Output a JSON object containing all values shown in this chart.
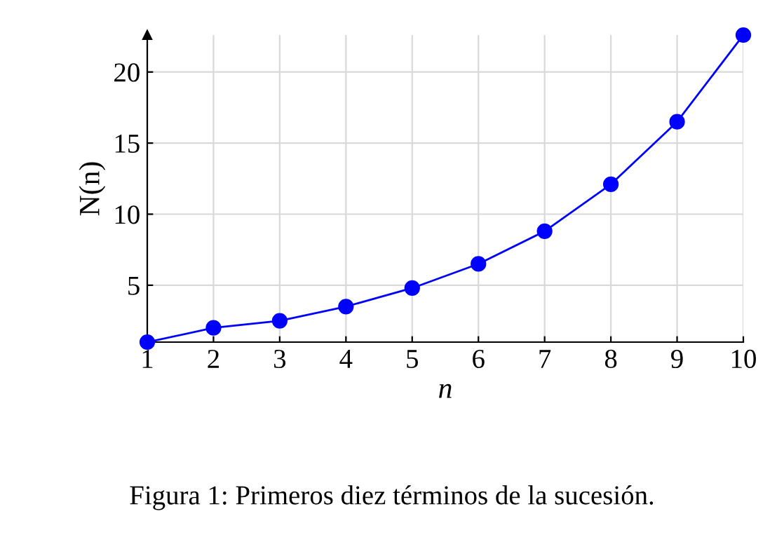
{
  "chart_data": {
    "type": "line",
    "x": [
      1,
      2,
      3,
      4,
      5,
      6,
      7,
      8,
      9,
      10
    ],
    "series": [
      {
        "color": "#0000ff",
        "values": [
          1,
          2.0,
          2.5,
          3.5,
          4.8,
          6.5,
          8.8,
          12.1,
          16.5,
          22.6
        ]
      }
    ],
    "xlabel": "n",
    "ylabel": "N(n)",
    "xlim": [
      1,
      10
    ],
    "ylim": [
      1,
      22.6
    ],
    "xticks": [
      1,
      2,
      3,
      4,
      5,
      6,
      7,
      8,
      9,
      10
    ],
    "yticks": [
      5,
      10,
      15,
      20
    ],
    "grid": true,
    "marker": "circle",
    "line_style": "solid",
    "annotations": [
      "Figura 1: Primeros diez términos de la sucesión."
    ]
  }
}
